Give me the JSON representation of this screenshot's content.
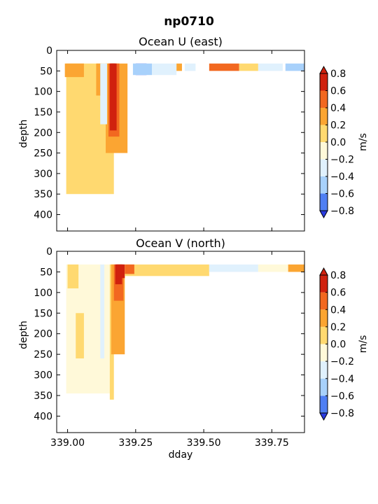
{
  "figure": {
    "suptitle": "np0710"
  },
  "chart_data": [
    {
      "type": "heatmap",
      "title": "Ocean U (east)",
      "xlabel": "",
      "ylabel": "depth",
      "xlim": [
        338.96,
        339.87
      ],
      "ylim": [
        440,
        0
      ],
      "yticks": [
        0,
        50,
        100,
        150,
        200,
        250,
        300,
        350,
        400
      ],
      "xticks": [
        339.0,
        339.25,
        339.5,
        339.75
      ],
      "xticklabels_shown": false,
      "colorbar_label": "m/s",
      "colorbar_ticks": [
        "0.8",
        "0.6",
        "0.4",
        "0.2",
        "0.0",
        "−0.2",
        "−0.4",
        "−0.6",
        "−0.8"
      ],
      "levels": [
        -0.8,
        -0.6,
        -0.4,
        -0.2,
        0.0,
        0.2,
        0.4,
        0.6,
        0.8
      ],
      "colors": [
        "#2a3be0",
        "#4f7ff3",
        "#a8d1fb",
        "#e0f1fd",
        "#fff9d9",
        "#ffd970",
        "#fba532",
        "#f26820",
        "#d0210e"
      ],
      "data_depth_range": [
        32,
        365
      ],
      "regions": [
        {
          "value": 0.1,
          "x": [
            338.995,
            339.17
          ],
          "depth": [
            32,
            350
          ]
        },
        {
          "value": 0.3,
          "x": [
            338.99,
            339.06
          ],
          "depth": [
            32,
            65
          ]
        },
        {
          "value": 0.3,
          "x": [
            339.105,
            339.125
          ],
          "depth": [
            32,
            110
          ]
        },
        {
          "value": 0.3,
          "x": [
            339.14,
            339.22
          ],
          "depth": [
            32,
            250
          ]
        },
        {
          "value": 0.5,
          "x": [
            339.15,
            339.19
          ],
          "depth": [
            32,
            210
          ]
        },
        {
          "value": 0.7,
          "x": [
            339.155,
            339.18
          ],
          "depth": [
            32,
            195
          ]
        },
        {
          "value": 0.9,
          "x": [
            339.16,
            339.175
          ],
          "depth": [
            32,
            150
          ]
        },
        {
          "value": -0.3,
          "x": [
            339.12,
            339.145
          ],
          "depth": [
            32,
            180
          ]
        },
        {
          "value": -0.9,
          "x": [
            339.25,
            339.29
          ],
          "depth": [
            32,
            60
          ]
        },
        {
          "value": -0.5,
          "x": [
            339.24,
            339.31
          ],
          "depth": [
            32,
            60
          ]
        },
        {
          "value": -0.3,
          "x": [
            339.31,
            339.4
          ],
          "depth": [
            32,
            60
          ]
        },
        {
          "value": 0.3,
          "x": [
            339.4,
            339.42
          ],
          "depth": [
            32,
            50
          ]
        },
        {
          "value": -0.3,
          "x": [
            339.43,
            339.47
          ],
          "depth": [
            32,
            50
          ]
        },
        {
          "value": 0.5,
          "x": [
            339.52,
            339.63
          ],
          "depth": [
            32,
            50
          ]
        },
        {
          "value": 0.1,
          "x": [
            339.63,
            339.7
          ],
          "depth": [
            32,
            50
          ]
        },
        {
          "value": -0.3,
          "x": [
            339.7,
            339.79
          ],
          "depth": [
            32,
            50
          ]
        },
        {
          "value": -0.5,
          "x": [
            339.8,
            339.87
          ],
          "depth": [
            32,
            50
          ]
        }
      ]
    },
    {
      "type": "heatmap",
      "title": "Ocean V (north)",
      "xlabel": "dday",
      "ylabel": "depth",
      "xlim": [
        338.96,
        339.87
      ],
      "ylim": [
        440,
        0
      ],
      "yticks": [
        0,
        50,
        100,
        150,
        200,
        250,
        300,
        350,
        400
      ],
      "xticks": [
        339.0,
        339.25,
        339.5,
        339.75
      ],
      "xticklabels": [
        "339.00",
        "339.25",
        "339.50",
        "339.75"
      ],
      "xticklabels_shown": true,
      "colorbar_label": "m/s",
      "colorbar_ticks": [
        "0.8",
        "0.6",
        "0.4",
        "0.2",
        "0.0",
        "−0.2",
        "−0.4",
        "−0.6",
        "−0.8"
      ],
      "levels": [
        -0.8,
        -0.6,
        -0.4,
        -0.2,
        0.0,
        0.2,
        0.4,
        0.6,
        0.8
      ],
      "colors": [
        "#2a3be0",
        "#4f7ff3",
        "#a8d1fb",
        "#e0f1fd",
        "#fff9d9",
        "#ffd970",
        "#fba532",
        "#f26820",
        "#d0210e"
      ],
      "data_depth_range": [
        32,
        360
      ],
      "regions": [
        {
          "value": -0.1,
          "x": [
            338.995,
            339.17
          ],
          "depth": [
            32,
            345
          ]
        },
        {
          "value": 0.1,
          "x": [
            339.0,
            339.04
          ],
          "depth": [
            32,
            90
          ]
        },
        {
          "value": 0.1,
          "x": [
            339.03,
            339.06
          ],
          "depth": [
            150,
            260
          ]
        },
        {
          "value": -0.3,
          "x": [
            339.12,
            339.135
          ],
          "depth": [
            32,
            260
          ]
        },
        {
          "value": 0.1,
          "x": [
            339.155,
            339.17
          ],
          "depth": [
            32,
            360
          ]
        },
        {
          "value": 0.3,
          "x": [
            339.16,
            339.21
          ],
          "depth": [
            32,
            250
          ]
        },
        {
          "value": 0.5,
          "x": [
            339.17,
            339.205
          ],
          "depth": [
            32,
            120
          ]
        },
        {
          "value": 0.7,
          "x": [
            339.175,
            339.2
          ],
          "depth": [
            32,
            80
          ]
        },
        {
          "value": 0.9,
          "x": [
            339.18,
            339.21
          ],
          "depth": [
            32,
            65
          ]
        },
        {
          "value": 0.1,
          "x": [
            339.21,
            339.52
          ],
          "depth": [
            32,
            60
          ]
        },
        {
          "value": 0.5,
          "x": [
            339.21,
            339.245
          ],
          "depth": [
            32,
            55
          ]
        },
        {
          "value": -0.3,
          "x": [
            339.52,
            339.7
          ],
          "depth": [
            32,
            50
          ]
        },
        {
          "value": -0.1,
          "x": [
            339.7,
            339.81
          ],
          "depth": [
            32,
            50
          ]
        },
        {
          "value": 0.3,
          "x": [
            339.81,
            339.87
          ],
          "depth": [
            32,
            50
          ]
        }
      ]
    }
  ]
}
